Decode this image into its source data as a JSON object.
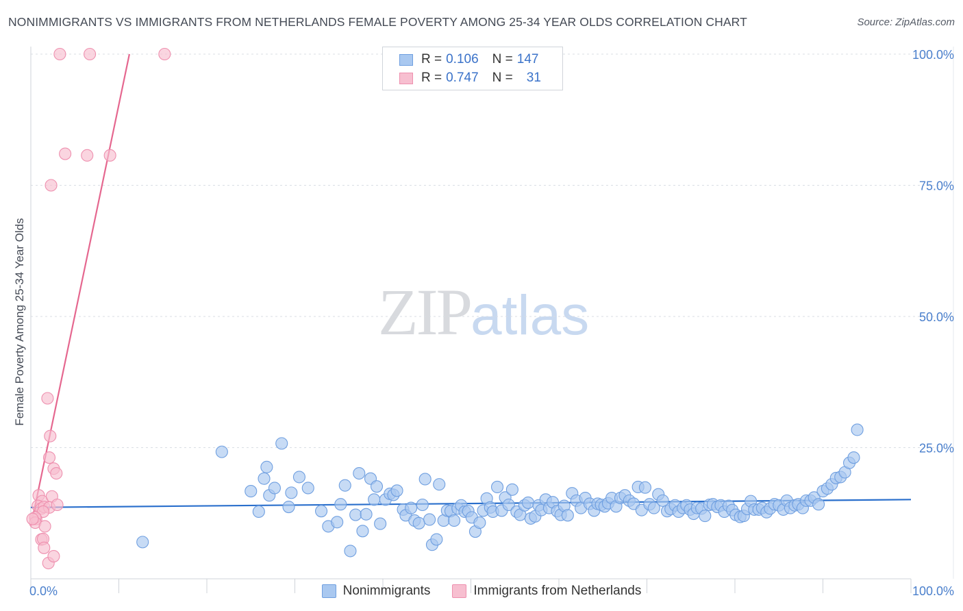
{
  "header": {
    "title": "NONIMMIGRANTS VS IMMIGRANTS FROM NETHERLANDS FEMALE POVERTY AMONG 25-34 YEAR OLDS CORRELATION CHART",
    "source": "Source: ZipAtlas.com"
  },
  "watermark": {
    "zip": "ZIP",
    "atlas": "atlas"
  },
  "legend_top": {
    "rows": [
      {
        "r_label": "R =",
        "r_value": "0.106",
        "n_label": "N =",
        "n_value": "147"
      },
      {
        "r_label": "R =",
        "r_value": "0.747",
        "n_label": "N =",
        "n_value": "31"
      }
    ]
  },
  "legend_bottom": {
    "items": [
      {
        "label": "Nonimmigrants"
      },
      {
        "label": "Immigrants from Netherlands"
      }
    ]
  },
  "colors": {
    "blue_fill": "#a9c8f0",
    "blue_stroke": "#6f9fe0",
    "blue_line": "#2a6fcc",
    "pink_fill": "#f7bfd0",
    "pink_stroke": "#ee8fae",
    "pink_line": "#e5678f",
    "grid": "#d9dde3",
    "axis_text": "#4a7fcc"
  },
  "chart_data": {
    "type": "scatter",
    "title": "NONIMMIGRANTS VS IMMIGRANTS FROM NETHERLANDS FEMALE POVERTY AMONG 25-34 YEAR OLDS CORRELATION CHART",
    "xlabel": "",
    "ylabel": "Female Poverty Among 25-34 Year Olds",
    "xlim": [
      0,
      100
    ],
    "ylim": [
      0,
      100
    ],
    "x_tick_labels": [
      "0.0%",
      "100.0%"
    ],
    "y_ticks": [
      25,
      50,
      75,
      100
    ],
    "y_tick_labels": [
      "25.0%",
      "50.0%",
      "75.0%",
      "100.0%"
    ],
    "grid": true,
    "series": [
      {
        "name": "Nonimmigrants",
        "r": 0.106,
        "n": 147,
        "trend": {
          "x": [
            0,
            100
          ],
          "y": [
            13.6,
            15.1
          ]
        },
        "points": [
          [
            12.7,
            7.0
          ],
          [
            21.7,
            24.2
          ],
          [
            25.0,
            16.7
          ],
          [
            25.9,
            12.8
          ],
          [
            26.5,
            19.1
          ],
          [
            26.8,
            21.3
          ],
          [
            27.1,
            15.9
          ],
          [
            27.7,
            17.3
          ],
          [
            28.5,
            25.8
          ],
          [
            29.3,
            13.7
          ],
          [
            29.6,
            16.4
          ],
          [
            30.5,
            19.4
          ],
          [
            31.5,
            17.3
          ],
          [
            33.0,
            12.9
          ],
          [
            33.8,
            10.0
          ],
          [
            34.8,
            10.8
          ],
          [
            35.2,
            14.2
          ],
          [
            35.7,
            17.8
          ],
          [
            36.3,
            5.3
          ],
          [
            36.9,
            12.2
          ],
          [
            37.3,
            20.1
          ],
          [
            37.7,
            9.1
          ],
          [
            38.1,
            12.3
          ],
          [
            38.6,
            19.1
          ],
          [
            39.0,
            15.1
          ],
          [
            39.3,
            17.6
          ],
          [
            39.7,
            10.5
          ],
          [
            40.3,
            15.1
          ],
          [
            40.8,
            16.2
          ],
          [
            41.2,
            16.0
          ],
          [
            41.6,
            16.8
          ],
          [
            42.3,
            13.2
          ],
          [
            42.6,
            12.1
          ],
          [
            43.2,
            13.5
          ],
          [
            43.6,
            11.1
          ],
          [
            44.1,
            10.6
          ],
          [
            44.5,
            14.1
          ],
          [
            44.8,
            19.0
          ],
          [
            45.3,
            11.3
          ],
          [
            45.6,
            6.5
          ],
          [
            46.1,
            7.5
          ],
          [
            46.4,
            18.0
          ],
          [
            46.9,
            11.1
          ],
          [
            47.3,
            13.0
          ],
          [
            47.7,
            12.9
          ],
          [
            48.1,
            11.1
          ],
          [
            48.5,
            13.4
          ],
          [
            48.9,
            14.0
          ],
          [
            49.3,
            12.8
          ],
          [
            49.7,
            12.9
          ],
          [
            50.1,
            11.7
          ],
          [
            50.5,
            9.0
          ],
          [
            51.0,
            10.7
          ],
          [
            51.4,
            13.0
          ],
          [
            51.8,
            15.3
          ],
          [
            52.2,
            13.6
          ],
          [
            52.5,
            12.8
          ],
          [
            53.0,
            17.5
          ],
          [
            53.5,
            13.0
          ],
          [
            53.9,
            15.5
          ],
          [
            54.3,
            14.1
          ],
          [
            54.7,
            17.0
          ],
          [
            55.2,
            12.8
          ],
          [
            55.6,
            12.2
          ],
          [
            56.1,
            14.0
          ],
          [
            56.5,
            14.5
          ],
          [
            56.8,
            11.5
          ],
          [
            57.3,
            11.9
          ],
          [
            57.7,
            14.0
          ],
          [
            58.0,
            13.1
          ],
          [
            58.5,
            15.1
          ],
          [
            58.9,
            13.5
          ],
          [
            59.3,
            14.6
          ],
          [
            59.8,
            12.9
          ],
          [
            60.2,
            12.2
          ],
          [
            60.6,
            13.9
          ],
          [
            61.0,
            12.1
          ],
          [
            61.5,
            16.3
          ],
          [
            62.0,
            14.9
          ],
          [
            62.5,
            13.5
          ],
          [
            63.0,
            15.4
          ],
          [
            63.5,
            14.3
          ],
          [
            64.0,
            13.0
          ],
          [
            64.4,
            14.3
          ],
          [
            64.8,
            14.1
          ],
          [
            65.2,
            13.8
          ],
          [
            65.6,
            14.4
          ],
          [
            66.0,
            15.4
          ],
          [
            66.5,
            13.8
          ],
          [
            67.0,
            15.4
          ],
          [
            67.5,
            15.9
          ],
          [
            68.0,
            14.9
          ],
          [
            68.5,
            14.3
          ],
          [
            69.0,
            17.5
          ],
          [
            69.4,
            13.1
          ],
          [
            69.8,
            17.4
          ],
          [
            70.3,
            14.2
          ],
          [
            70.8,
            13.5
          ],
          [
            71.3,
            16.1
          ],
          [
            71.8,
            14.9
          ],
          [
            72.3,
            12.9
          ],
          [
            72.7,
            13.3
          ],
          [
            73.2,
            14.0
          ],
          [
            73.6,
            12.8
          ],
          [
            74.1,
            13.5
          ],
          [
            74.5,
            14.0
          ],
          [
            74.9,
            13.2
          ],
          [
            75.3,
            12.4
          ],
          [
            75.7,
            13.5
          ],
          [
            76.2,
            13.4
          ],
          [
            76.6,
            12.0
          ],
          [
            77.1,
            14.1
          ],
          [
            77.5,
            14.2
          ],
          [
            78.0,
            13.7
          ],
          [
            78.4,
            14.0
          ],
          [
            78.8,
            12.8
          ],
          [
            79.3,
            13.9
          ],
          [
            79.7,
            13.1
          ],
          [
            80.1,
            12.2
          ],
          [
            80.6,
            11.8
          ],
          [
            81.0,
            12.0
          ],
          [
            81.4,
            13.3
          ],
          [
            81.8,
            14.8
          ],
          [
            82.2,
            13.2
          ],
          [
            82.7,
            13.2
          ],
          [
            83.1,
            13.5
          ],
          [
            83.6,
            12.7
          ],
          [
            84.0,
            13.4
          ],
          [
            84.5,
            14.2
          ],
          [
            85.0,
            14.0
          ],
          [
            85.5,
            13.2
          ],
          [
            85.9,
            14.9
          ],
          [
            86.3,
            13.5
          ],
          [
            86.8,
            14.0
          ],
          [
            87.2,
            14.2
          ],
          [
            87.7,
            13.5
          ],
          [
            88.1,
            14.9
          ],
          [
            88.6,
            14.9
          ],
          [
            89.0,
            15.5
          ],
          [
            89.5,
            14.2
          ],
          [
            90.0,
            16.7
          ],
          [
            90.5,
            17.2
          ],
          [
            91.0,
            18.0
          ],
          [
            91.5,
            19.2
          ],
          [
            92.0,
            19.4
          ],
          [
            92.5,
            20.3
          ],
          [
            93.0,
            22.1
          ],
          [
            93.5,
            23.1
          ],
          [
            93.9,
            28.4
          ]
        ]
      },
      {
        "name": "Immigrants from Netherlands",
        "r": 0.747,
        "n": 31,
        "trend": {
          "x": [
            0,
            11.2
          ],
          "y": [
            10,
            100
          ]
        },
        "points": [
          [
            3.3,
            100
          ],
          [
            6.7,
            100
          ],
          [
            15.2,
            100
          ],
          [
            3.9,
            81.0
          ],
          [
            6.4,
            80.7
          ],
          [
            9.0,
            80.7
          ],
          [
            2.3,
            75.0
          ],
          [
            1.9,
            34.4
          ],
          [
            2.2,
            27.2
          ],
          [
            2.1,
            23.1
          ],
          [
            2.6,
            21.0
          ],
          [
            2.9,
            20.1
          ],
          [
            0.9,
            15.9
          ],
          [
            1.3,
            14.8
          ],
          [
            2.4,
            15.7
          ],
          [
            0.8,
            13.9
          ],
          [
            1.2,
            13.4
          ],
          [
            1.5,
            13.7
          ],
          [
            2.1,
            13.6
          ],
          [
            3.0,
            14.1
          ],
          [
            1.4,
            12.8
          ],
          [
            0.6,
            11.4
          ],
          [
            0.5,
            11.7
          ],
          [
            0.5,
            10.7
          ],
          [
            1.6,
            10.0
          ],
          [
            1.2,
            7.5
          ],
          [
            1.4,
            7.6
          ],
          [
            1.5,
            5.9
          ],
          [
            2.0,
            3.0
          ],
          [
            2.6,
            4.3
          ],
          [
            0.2,
            11.4
          ]
        ]
      }
    ]
  }
}
